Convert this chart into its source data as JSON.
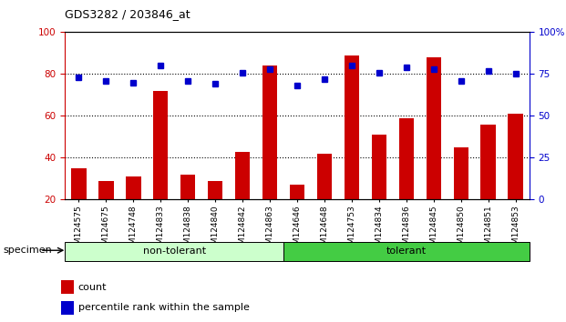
{
  "title": "GDS3282 / 203846_at",
  "categories": [
    "GSM124575",
    "GSM124675",
    "GSM124748",
    "GSM124833",
    "GSM124838",
    "GSM124840",
    "GSM124842",
    "GSM124863",
    "GSM124646",
    "GSM124648",
    "GSM124753",
    "GSM124834",
    "GSM124836",
    "GSM124845",
    "GSM124850",
    "GSM124851",
    "GSM124853"
  ],
  "bar_values": [
    35,
    29,
    31,
    72,
    32,
    29,
    43,
    84,
    27,
    42,
    89,
    51,
    59,
    88,
    45,
    56,
    61
  ],
  "dot_values": [
    73,
    71,
    70,
    80,
    71,
    69,
    76,
    78,
    68,
    72,
    80,
    76,
    79,
    78,
    71,
    77,
    75
  ],
  "bar_color": "#cc0000",
  "dot_color": "#0000cc",
  "non_tolerant_count": 8,
  "tolerant_count": 9,
  "non_tolerant_label": "non-tolerant",
  "tolerant_label": "tolerant",
  "non_tolerant_color": "#ccffcc",
  "tolerant_color": "#44cc44",
  "specimen_label": "specimen",
  "legend_bar_label": "count",
  "legend_dot_label": "percentile rank within the sample",
  "ylim_left": [
    20,
    100
  ],
  "ylim_right": [
    0,
    100
  ],
  "yticks_left": [
    20,
    40,
    60,
    80,
    100
  ],
  "yticks_right": [
    0,
    25,
    50,
    75,
    100
  ],
  "ytick_labels_right": [
    "0",
    "25",
    "50",
    "75",
    "100%"
  ],
  "ylabel_left_color": "#cc0000",
  "ylabel_right_color": "#0000cc",
  "grid_lines": [
    40,
    60,
    80
  ],
  "background_color": "#ffffff"
}
